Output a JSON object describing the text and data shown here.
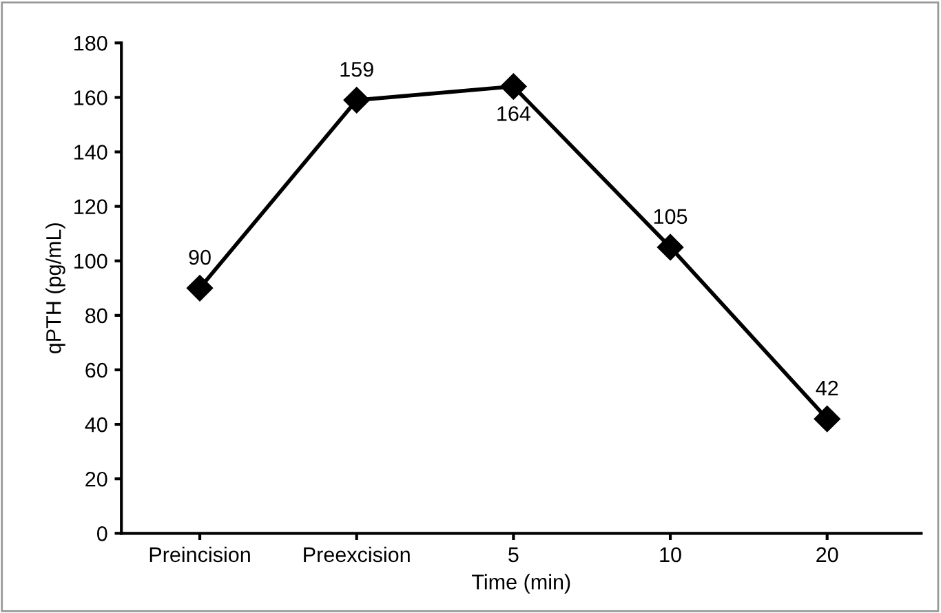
{
  "chart_data": {
    "type": "line",
    "xlabel": "Time (min)",
    "ylabel": "qPTH (pg/mL)",
    "categories": [
      "Preincision",
      "Preexcision",
      "5",
      "10",
      "20"
    ],
    "values": [
      90,
      159,
      164,
      105,
      42
    ],
    "color": "#000000",
    "marker": "diamond",
    "line_style": "solid",
    "data_labels": true,
    "ylim": [
      0,
      180
    ],
    "yticks": [
      0,
      20,
      40,
      60,
      80,
      100,
      120,
      140,
      160,
      180
    ],
    "grid": false
  }
}
